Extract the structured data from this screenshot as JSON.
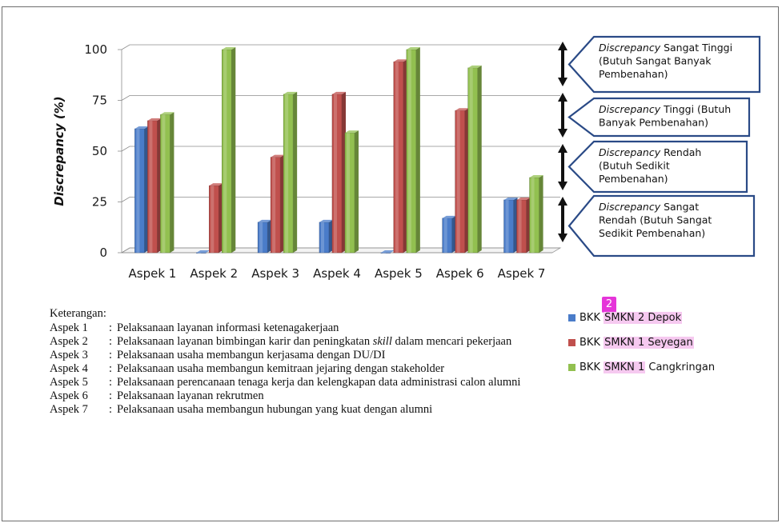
{
  "chart_data": {
    "type": "bar",
    "categories": [
      "Aspek 1",
      "Aspek 2",
      "Aspek 3",
      "Aspek 4",
      "Aspek 5",
      "Aspek 6",
      "Aspek 7"
    ],
    "series": [
      {
        "name": "BKK SMKN 2 Depok",
        "color": "#4a7cc9",
        "values": [
          61,
          0,
          15,
          15,
          0,
          17,
          26
        ]
      },
      {
        "name": "BKK SMKN 1 Seyegan",
        "color": "#c0504d",
        "values": [
          65,
          33,
          47,
          78,
          94,
          70,
          26
        ]
      },
      {
        "name": "BKK SMKN 1 Cangkringan",
        "color": "#92c050",
        "values": [
          68,
          100,
          78,
          59,
          100,
          91,
          37
        ]
      }
    ],
    "ylabel": "Discrepancy (%)",
    "ylim": [
      0,
      100
    ],
    "yticks": [
      "0",
      "25",
      "50",
      "75",
      "100"
    ],
    "legend_position": "right"
  },
  "callouts": [
    {
      "lines": [
        [
          "Discrepancy",
          " Sangat Tinggi"
        ],
        [
          "",
          "(Butuh Sangat Banyak"
        ],
        [
          "",
          "Pembenahan)"
        ]
      ]
    },
    {
      "lines": [
        [
          "Discrepancy",
          " Tinggi (Butuh"
        ],
        [
          "",
          "Banyak Pembenahan)"
        ]
      ]
    },
    {
      "lines": [
        [
          "Discrepancy",
          " Rendah"
        ],
        [
          "",
          "(Butuh Sedikit"
        ],
        [
          "",
          "Pembenahan)"
        ]
      ]
    },
    {
      "lines": [
        [
          "Discrepancy",
          " Sangat"
        ],
        [
          "",
          "Rendah (Butuh Sangat"
        ],
        [
          "",
          "Sedikit Pembenahan)"
        ]
      ]
    }
  ],
  "keterangan": {
    "title": "Keterangan:",
    "items": [
      {
        "key": "Aspek 1",
        "desc": "Pelaksanaan layanan informasi ketenagakerjaan"
      },
      {
        "key": "Aspek 2",
        "desc_pre": "Pelaksanaan layanan bimbingan karir dan peningkatan ",
        "desc_em": "skill",
        "desc_post": " dalam mencari pekerjaan"
      },
      {
        "key": "Aspek 3",
        "desc": "Pelaksanaan usaha membangun kerjasama dengan DU/DI"
      },
      {
        "key": "Aspek 4",
        "desc": "Pelaksanaan usaha membangun kemitraan jejaring dengan stakeholder"
      },
      {
        "key": "Aspek 5",
        "desc": "Pelaksanaan perencanaan tenaga kerja dan kelengkapan data administrasi calon alumni"
      },
      {
        "key": "Aspek 6",
        "desc": "Pelaksanaan layanan rekrutmen"
      },
      {
        "key": "Aspek 7",
        "desc": "Pelaksanaan usaha membangun hubungan yang kuat dengan alumni"
      }
    ]
  },
  "legend": [
    {
      "prefix": "BKK ",
      "highlight": "SMKN 2 Depok",
      "suffix": "",
      "color": "#4a7cc9"
    },
    {
      "prefix": "BKK ",
      "highlight": "SMKN 1 Seyegan",
      "suffix": "",
      "color": "#c0504d"
    },
    {
      "prefix": "BKK ",
      "highlight": "SMKN 1",
      "suffix": " Cangkringan",
      "color": "#92c050"
    }
  ],
  "badge": "2"
}
